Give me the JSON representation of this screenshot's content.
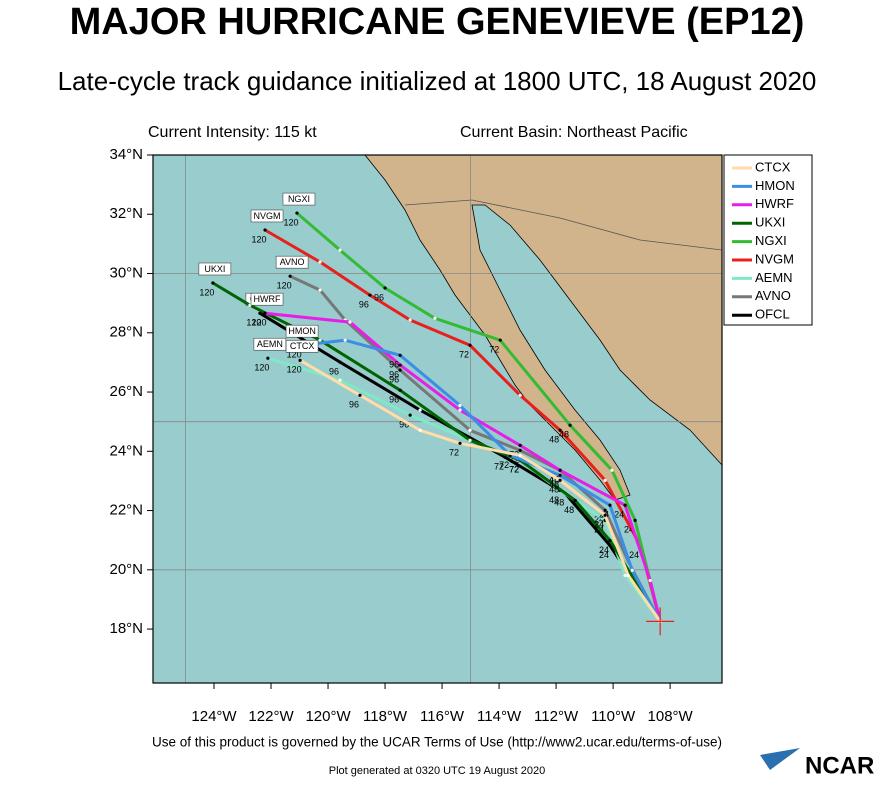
{
  "map": {
    "title": "MAJOR HURRICANE GENEVIEVE (EP12)",
    "subtitle": "Late-cycle track guidance initialized at 1800 UTC, 18 August 2020",
    "intensity": "Current Intensity: 115 kt",
    "basin": "Current Basin: Northeast Pacific",
    "xlim": [
      -126.14,
      -106.18
    ],
    "ylim": [
      16.18,
      34
    ],
    "xticks": [
      {
        "value": -124,
        "label": "124°W"
      },
      {
        "value": -122,
        "label": "122°W"
      },
      {
        "value": -120,
        "label": "120°W"
      },
      {
        "value": -118,
        "label": "118°W"
      },
      {
        "value": -116,
        "label": "116°W"
      },
      {
        "value": -114,
        "label": "114°W"
      },
      {
        "value": -112,
        "label": "112°W"
      },
      {
        "value": -110,
        "label": "110°W"
      },
      {
        "value": -108,
        "label": "108°W"
      }
    ],
    "yticks": [
      {
        "value": 18,
        "label": "18°N"
      },
      {
        "value": 20,
        "label": "20°N"
      },
      {
        "value": 22,
        "label": "22°N"
      },
      {
        "value": 24,
        "label": "24°N"
      },
      {
        "value": 26,
        "label": "26°N"
      },
      {
        "value": 28,
        "label": "28°N"
      },
      {
        "value": 30,
        "label": "30°N"
      },
      {
        "value": 32,
        "label": "32°N"
      },
      {
        "value": 34,
        "label": "34°N"
      }
    ],
    "grid_lons": [
      -125,
      -115
    ],
    "grid_lats": [
      20,
      25,
      30
    ],
    "current_position": [
      -108.35,
      18.26
    ],
    "tracks": [
      {
        "name": "CTCX",
        "color": "#ffdca8",
        "lons": [
          -108.35,
          -109.47,
          -110.28,
          -111.86,
          -113.26,
          -115.37,
          -116.77,
          -118.88,
          -120.98
        ],
        "lats": [
          18.26,
          19.81,
          21.84,
          23.02,
          23.86,
          24.27,
          24.71,
          25.89,
          27.07
        ],
        "hours": [
          null,
          null,
          24,
          48,
          null,
          72,
          null,
          96,
          120
        ]
      },
      {
        "name": "HMON",
        "color": "#3a8ee6",
        "lons": [
          -108.35,
          -109.33,
          -110.11,
          -111.86,
          -113.61,
          -115.37,
          -117.47,
          -119.4,
          -120.98
        ],
        "lats": [
          18.26,
          19.98,
          22.18,
          23.19,
          23.86,
          25.55,
          27.24,
          27.75,
          27.58
        ],
        "hours": [
          null,
          null,
          24,
          48,
          72,
          null,
          96,
          null,
          120
        ]
      },
      {
        "name": "HWRF",
        "color": "#e61ee6",
        "lons": [
          -108.35,
          -108.7,
          -109.58,
          -111.86,
          -113.26,
          -115.37,
          -117.47,
          -119.23,
          -122.21
        ],
        "lats": [
          18.26,
          19.64,
          22.18,
          23.36,
          24.2,
          25.39,
          26.91,
          28.36,
          28.66
        ],
        "hours": [
          null,
          null,
          24,
          48,
          72,
          null,
          96,
          null,
          120
        ]
      },
      {
        "name": "UKXI",
        "color": "#006400",
        "lons": [
          -108.35,
          -110.11,
          -111.33,
          -113.26,
          -115.02,
          -117.47,
          -120.28,
          -122.74,
          -124.04
        ],
        "lats": [
          18.26,
          20.99,
          22.34,
          23.7,
          24.37,
          26.06,
          27.75,
          28.93,
          29.68
        ],
        "hours": [
          null,
          24,
          48,
          72,
          null,
          96,
          null,
          null,
          120
        ]
      },
      {
        "name": "NGXI",
        "color": "#33bb33",
        "lons": [
          -108.35,
          -109.23,
          -110.04,
          -111.51,
          -113.96,
          -116.25,
          -118.0,
          -119.58,
          -121.09
        ],
        "lats": [
          18.26,
          21.67,
          23.36,
          24.88,
          27.75,
          28.49,
          29.51,
          30.79,
          32.04
        ],
        "hours": [
          null,
          24,
          null,
          48,
          72,
          null,
          96,
          null,
          120
        ]
      },
      {
        "name": "NVGM",
        "color": "#e8201c",
        "lons": [
          -108.35,
          -109.05,
          -110.28,
          -111.86,
          -113.26,
          -115.02,
          -117.12,
          -118.53,
          -120.28,
          -122.21
        ],
        "lats": [
          18.26,
          20.82,
          23.02,
          24.71,
          25.89,
          27.58,
          28.43,
          29.27,
          30.39,
          31.47
        ],
        "hours": [
          null,
          24,
          null,
          48,
          null,
          72,
          null,
          96,
          null,
          120
        ]
      },
      {
        "name": "AEMN",
        "color": "#80e8c8",
        "lons": [
          -108.35,
          -109.58,
          -110.28,
          -111.86,
          -113.26,
          -115.02,
          -117.12,
          -119.58,
          -122.11
        ],
        "lats": [
          18.26,
          19.81,
          21.67,
          22.68,
          23.7,
          24.37,
          25.22,
          26.4,
          27.14
        ],
        "hours": [
          null,
          null,
          24,
          48,
          72,
          null,
          96,
          null,
          120
        ]
      },
      {
        "name": "AVNO",
        "color": "#777777",
        "lons": [
          -108.35,
          -109.4,
          -110.28,
          -111.86,
          -113.26,
          -115.02,
          -117.47,
          -119.4,
          -120.28,
          -121.33
        ],
        "lats": [
          18.26,
          20.15,
          22.01,
          23.36,
          24.03,
          24.71,
          26.74,
          28.43,
          29.44,
          29.91
        ],
        "hours": [
          null,
          null,
          24,
          48,
          72,
          null,
          96,
          null,
          null,
          120
        ]
      },
      {
        "name": "OFCL",
        "color": "#000000",
        "lons": [
          -108.35,
          -110.11,
          -111.68,
          -113.79,
          -116.77,
          -119.58,
          -122.39
        ],
        "lats": [
          18.26,
          20.82,
          22.58,
          23.8,
          25.39,
          27.01,
          28.66
        ],
        "hours": [
          null,
          24,
          48,
          72,
          null,
          96,
          120
        ]
      }
    ],
    "footer": "Use of this product is governed by the UCAR Terms of Use (http://www2.ucar.edu/terms-of-use)",
    "generated": "Plot generated at 0320 UTC   19 August 2020",
    "logo": "NCAR"
  }
}
